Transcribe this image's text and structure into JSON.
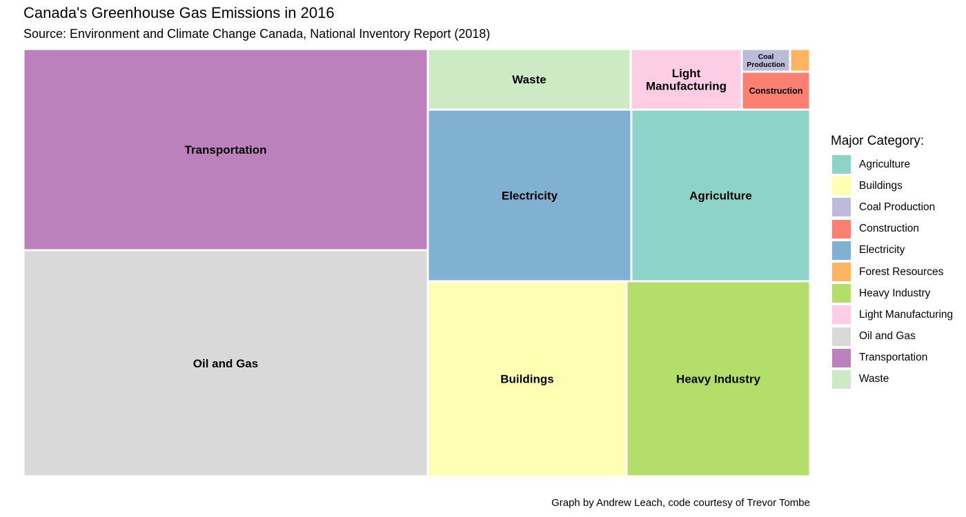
{
  "chart_data": {
    "type": "treemap",
    "title": "Canada's Greenhouse Gas Emissions in 2016",
    "subtitle": "Source: Environment and Climate Change Canada, National Inventory Report (2018)",
    "caption": "Graph by Andrew Leach, code courtesy of Trevor Tombe",
    "legend_title": "Major Category:",
    "legend_position": "right",
    "categories": [
      {
        "name": "Agriculture",
        "color": "#8DD3C7"
      },
      {
        "name": "Buildings",
        "color": "#FFFFB3"
      },
      {
        "name": "Coal Production",
        "color": "#BEBADA"
      },
      {
        "name": "Construction",
        "color": "#FB8072"
      },
      {
        "name": "Electricity",
        "color": "#80B1D3"
      },
      {
        "name": "Forest Resources",
        "color": "#FDB462"
      },
      {
        "name": "Heavy Industry",
        "color": "#B3DE69"
      },
      {
        "name": "Light Manufacturing",
        "color": "#FCCDE5"
      },
      {
        "name": "Oil and Gas",
        "color": "#D9D9D9"
      },
      {
        "name": "Transportation",
        "color": "#BC80BD"
      },
      {
        "name": "Waste",
        "color": "#CCEBC5"
      }
    ],
    "tiles": [
      {
        "label": "Transportation",
        "category": "Transportation"
      },
      {
        "label": "Oil and Gas",
        "category": "Oil and Gas"
      },
      {
        "label": "Waste",
        "category": "Waste"
      },
      {
        "label": "Light Manufacturing",
        "category": "Light Manufacturing"
      },
      {
        "label": "Coal Production",
        "category": "Coal Production"
      },
      {
        "label": "",
        "category": "Forest Resources"
      },
      {
        "label": "Construction",
        "category": "Construction"
      },
      {
        "label": "Electricity",
        "category": "Electricity"
      },
      {
        "label": "Agriculture",
        "category": "Agriculture"
      },
      {
        "label": "Buildings",
        "category": "Buildings"
      },
      {
        "label": "Heavy Industry",
        "category": "Heavy Industry"
      }
    ]
  }
}
